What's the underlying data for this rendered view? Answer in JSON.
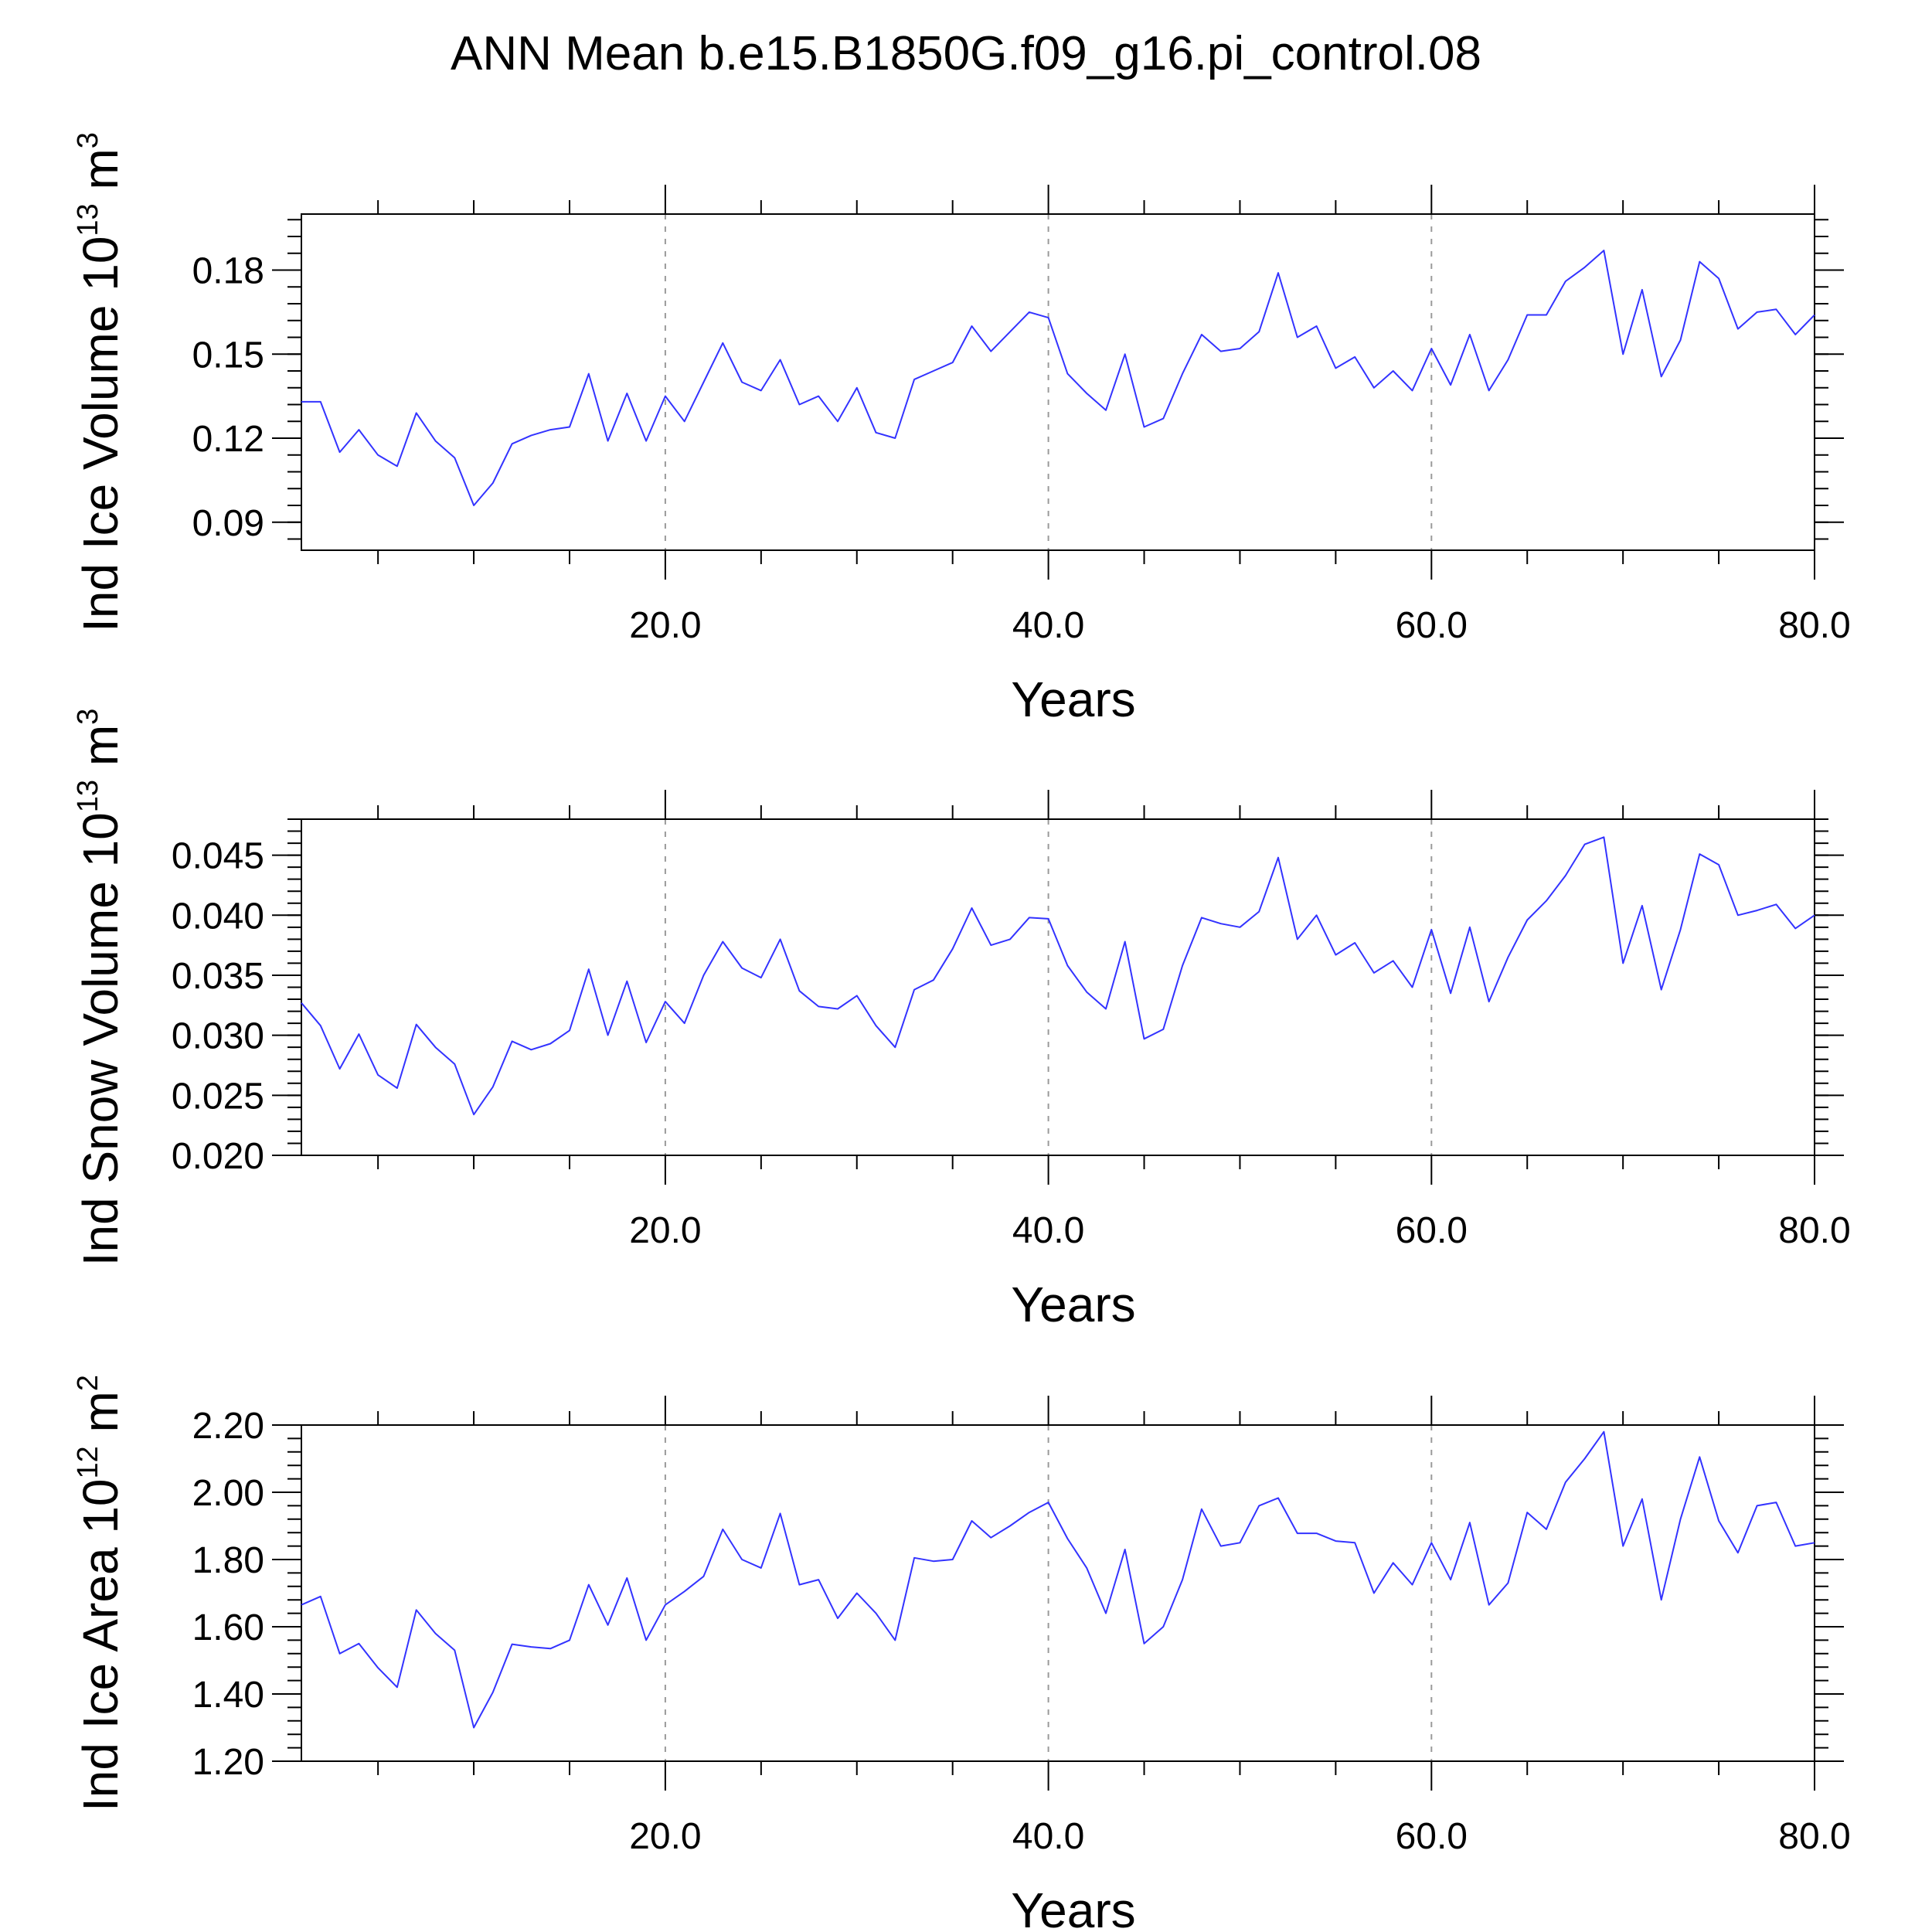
{
  "figure": {
    "title": "ANN Mean b.e15.B1850G.f09_g16.pi_control.08"
  },
  "chart_data": [
    {
      "type": "line",
      "title": "",
      "xlabel": "Years",
      "ylabel": "Ind Ice Volume 10",
      "ylabel_exp": "13",
      "ylabel_unit": "m",
      "ylabel_unit_exp": "3",
      "xlim": [
        1,
        80
      ],
      "ylim": [
        0.08,
        0.2
      ],
      "yticks": [
        0.09,
        0.12,
        0.15,
        0.18
      ],
      "ytick_labels": [
        "0.09",
        "0.12",
        "0.15",
        "0.18"
      ],
      "xticks": [
        20,
        40,
        60,
        80
      ],
      "xtick_labels": [
        "20.0",
        "40.0",
        "60.0",
        "80.0"
      ],
      "grid": "dashed vertical at major x ticks",
      "series": [
        {
          "color": "#3333ff",
          "x": [
            1,
            2,
            3,
            4,
            5,
            6,
            7,
            8,
            9,
            10,
            11,
            12,
            13,
            14,
            15,
            16,
            17,
            18,
            19,
            20,
            21,
            22,
            23,
            24,
            25,
            26,
            27,
            28,
            29,
            30,
            31,
            32,
            33,
            34,
            35,
            36,
            37,
            38,
            39,
            40,
            41,
            42,
            43,
            44,
            45,
            46,
            47,
            48,
            49,
            50,
            51,
            52,
            53,
            54,
            55,
            56,
            57,
            58,
            59,
            60,
            61,
            62,
            63,
            64,
            65,
            66,
            67,
            68,
            69,
            70,
            71,
            72,
            73,
            74,
            75,
            76,
            77,
            78,
            79,
            80
          ],
          "values": [
            0.133,
            0.133,
            0.115,
            0.123,
            0.114,
            0.11,
            0.129,
            0.119,
            0.113,
            0.096,
            0.104,
            0.118,
            0.121,
            0.123,
            0.124,
            0.143,
            0.119,
            0.136,
            0.119,
            0.135,
            0.126,
            0.14,
            0.154,
            0.14,
            0.137,
            0.148,
            0.132,
            0.135,
            0.126,
            0.138,
            0.122,
            0.12,
            0.141,
            0.144,
            0.147,
            0.16,
            0.151,
            0.158,
            0.165,
            0.163,
            0.143,
            0.136,
            0.13,
            0.15,
            0.124,
            0.127,
            0.143,
            0.157,
            0.151,
            0.152,
            0.158,
            0.179,
            0.156,
            0.16,
            0.145,
            0.149,
            0.138,
            0.144,
            0.137,
            0.152,
            0.139,
            0.157,
            0.137,
            0.148,
            0.164,
            0.164,
            0.176,
            0.181,
            0.187,
            0.15,
            0.173,
            0.142,
            0.155,
            0.183,
            0.177,
            0.159,
            0.165,
            0.166,
            0.157,
            0.164
          ]
        }
      ]
    },
    {
      "type": "line",
      "title": "",
      "xlabel": "Years",
      "ylabel": "Ind Snow Volume 10",
      "ylabel_exp": "13",
      "ylabel_unit": "m",
      "ylabel_unit_exp": "3",
      "xlim": [
        1,
        80
      ],
      "ylim": [
        0.02,
        0.048
      ],
      "yticks": [
        0.02,
        0.025,
        0.03,
        0.035,
        0.04,
        0.045
      ],
      "ytick_labels": [
        "0.020",
        "0.025",
        "0.030",
        "0.035",
        "0.040",
        "0.045"
      ],
      "xticks": [
        20,
        40,
        60,
        80
      ],
      "xtick_labels": [
        "20.0",
        "40.0",
        "60.0",
        "80.0"
      ],
      "grid": "dashed vertical at major x ticks",
      "series": [
        {
          "color": "#3333ff",
          "x": [
            1,
            2,
            3,
            4,
            5,
            6,
            7,
            8,
            9,
            10,
            11,
            12,
            13,
            14,
            15,
            16,
            17,
            18,
            19,
            20,
            21,
            22,
            23,
            24,
            25,
            26,
            27,
            28,
            29,
            30,
            31,
            32,
            33,
            34,
            35,
            36,
            37,
            38,
            39,
            40,
            41,
            42,
            43,
            44,
            45,
            46,
            47,
            48,
            49,
            50,
            51,
            52,
            53,
            54,
            55,
            56,
            57,
            58,
            59,
            60,
            61,
            62,
            63,
            64,
            65,
            66,
            67,
            68,
            69,
            70,
            71,
            72,
            73,
            74,
            75,
            76,
            77,
            78,
            79,
            80
          ],
          "values": [
            0.0327,
            0.0308,
            0.0272,
            0.0301,
            0.0267,
            0.0256,
            0.0309,
            0.029,
            0.0276,
            0.0234,
            0.0257,
            0.0295,
            0.0288,
            0.0293,
            0.0304,
            0.0355,
            0.03,
            0.0345,
            0.0294,
            0.0328,
            0.031,
            0.035,
            0.0378,
            0.0356,
            0.0348,
            0.038,
            0.0337,
            0.0324,
            0.0322,
            0.0333,
            0.0308,
            0.029,
            0.0338,
            0.0346,
            0.0372,
            0.0406,
            0.0375,
            0.038,
            0.0398,
            0.0397,
            0.0358,
            0.0336,
            0.0322,
            0.0378,
            0.0297,
            0.0305,
            0.0358,
            0.0398,
            0.0393,
            0.039,
            0.0403,
            0.0448,
            0.038,
            0.04,
            0.0367,
            0.0377,
            0.0352,
            0.0362,
            0.034,
            0.0388,
            0.0335,
            0.039,
            0.0328,
            0.0365,
            0.0396,
            0.0412,
            0.0433,
            0.0459,
            0.0465,
            0.036,
            0.0408,
            0.0338,
            0.0388,
            0.0451,
            0.0442,
            0.04,
            0.0404,
            0.0409,
            0.0389,
            0.04
          ]
        }
      ]
    },
    {
      "type": "line",
      "title": "",
      "xlabel": "Years",
      "ylabel": "Ind Ice Area 10",
      "ylabel_exp": "12",
      "ylabel_unit": "m",
      "ylabel_unit_exp": "2",
      "xlim": [
        1,
        80
      ],
      "ylim": [
        1.2,
        2.2
      ],
      "yticks": [
        1.2,
        1.4,
        1.6,
        1.8,
        2.0,
        2.2
      ],
      "ytick_labels": [
        "1.20",
        "1.40",
        "1.60",
        "1.80",
        "2.00",
        "2.20"
      ],
      "xticks": [
        20,
        40,
        60,
        80
      ],
      "xtick_labels": [
        "20.0",
        "40.0",
        "60.0",
        "80.0"
      ],
      "grid": "dashed vertical at major x ticks",
      "series": [
        {
          "color": "#3333ff",
          "x": [
            1,
            2,
            3,
            4,
            5,
            6,
            7,
            8,
            9,
            10,
            11,
            12,
            13,
            14,
            15,
            16,
            17,
            18,
            19,
            20,
            21,
            22,
            23,
            24,
            25,
            26,
            27,
            28,
            29,
            30,
            31,
            32,
            33,
            34,
            35,
            36,
            37,
            38,
            39,
            40,
            41,
            42,
            43,
            44,
            45,
            46,
            47,
            48,
            49,
            50,
            51,
            52,
            53,
            54,
            55,
            56,
            57,
            58,
            59,
            60,
            61,
            62,
            63,
            64,
            65,
            66,
            67,
            68,
            69,
            70,
            71,
            72,
            73,
            74,
            75,
            76,
            77,
            78,
            79,
            80
          ],
          "values": [
            1.665,
            1.69,
            1.52,
            1.55,
            1.478,
            1.42,
            1.65,
            1.58,
            1.53,
            1.3,
            1.405,
            1.548,
            1.54,
            1.535,
            1.56,
            1.725,
            1.605,
            1.745,
            1.56,
            1.665,
            1.705,
            1.75,
            1.89,
            1.8,
            1.775,
            1.937,
            1.725,
            1.74,
            1.625,
            1.7,
            1.64,
            1.56,
            1.805,
            1.795,
            1.8,
            1.915,
            1.865,
            1.9,
            1.94,
            1.97,
            1.862,
            1.775,
            1.64,
            1.83,
            1.55,
            1.6,
            1.74,
            1.95,
            1.84,
            1.85,
            1.96,
            1.983,
            1.878,
            1.878,
            1.855,
            1.85,
            1.7,
            1.79,
            1.725,
            1.85,
            1.74,
            1.91,
            1.665,
            1.73,
            1.94,
            1.89,
            2.03,
            2.1,
            2.18,
            1.84,
            1.98,
            1.68,
            1.92,
            2.105,
            1.915,
            1.82,
            1.96,
            1.97,
            1.84,
            1.85
          ]
        }
      ]
    }
  ]
}
